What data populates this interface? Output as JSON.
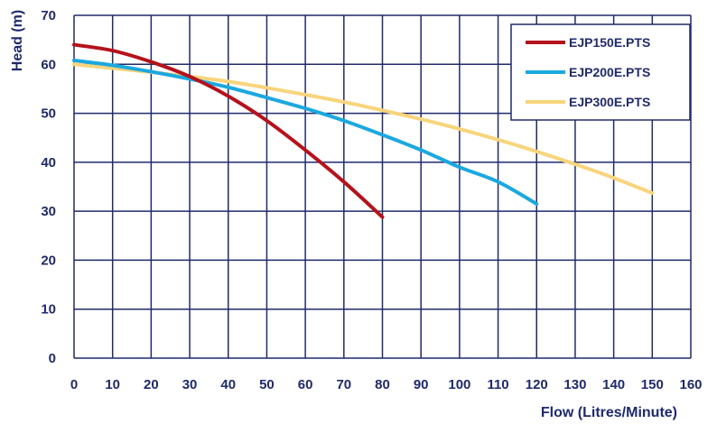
{
  "chart_data": {
    "type": "line",
    "xlabel": "Flow (Litres/Minute)",
    "ylabel": "Head (m)",
    "xlim": [
      0,
      160
    ],
    "ylim": [
      0,
      70
    ],
    "xticks": [
      0,
      10,
      20,
      30,
      40,
      50,
      60,
      70,
      80,
      90,
      100,
      110,
      120,
      130,
      140,
      150,
      160
    ],
    "yticks": [
      0,
      10,
      20,
      30,
      40,
      50,
      60,
      70
    ],
    "grid": true,
    "legend": "top-right",
    "colors": {
      "grid": "#1f2a6b",
      "text": "#1f2a6b"
    },
    "series": [
      {
        "name": "EJP150E.PTS",
        "color": "#b5121b",
        "x": [
          0,
          10,
          20,
          30,
          40,
          50,
          60,
          70,
          80
        ],
        "y": [
          64,
          62.8,
          60.5,
          57.5,
          53.5,
          48.5,
          42.5,
          36,
          28.8
        ]
      },
      {
        "name": "EJP200E.PTS",
        "color": "#1ba8e0",
        "x": [
          0,
          10,
          20,
          30,
          40,
          50,
          60,
          70,
          80,
          90,
          100,
          110,
          120
        ],
        "y": [
          60.8,
          59.8,
          58.5,
          57,
          55.3,
          53.2,
          51,
          48.5,
          45.6,
          42.5,
          39,
          36,
          31.5
        ]
      },
      {
        "name": "EJP300E.PTS",
        "color": "#f8d57c",
        "x": [
          0,
          10,
          20,
          30,
          40,
          50,
          60,
          70,
          80,
          90,
          100,
          110,
          120,
          130,
          140,
          150
        ],
        "y": [
          60,
          59.2,
          58.4,
          57.5,
          56.5,
          55.2,
          53.8,
          52.3,
          50.6,
          48.8,
          46.8,
          44.6,
          42.2,
          39.6,
          36.8,
          33.7
        ]
      }
    ]
  }
}
